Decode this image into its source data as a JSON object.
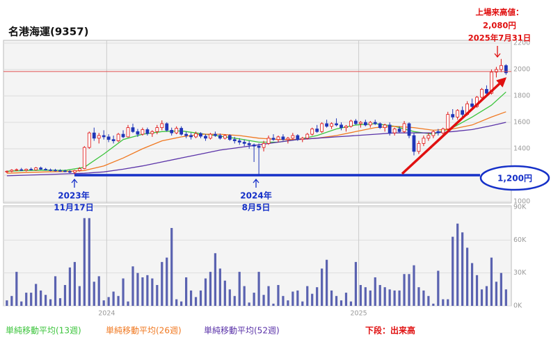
{
  "chart_data": {
    "type": "candlestick",
    "title": "名港海運(9357)",
    "xlim": [
      -0.7,
      104.1
    ],
    "xticks": [
      {
        "value": 20.6,
        "label": "2024"
      },
      {
        "value": 72.6,
        "label": "2025"
      }
    ],
    "ylim": [
      1000,
      2200
    ],
    "yticks": [
      1000,
      1200,
      1400,
      1600,
      1800,
      2000,
      2200
    ],
    "volume_ylim": [
      0,
      90000
    ],
    "volume_ticks": [
      {
        "value": 0,
        "label": "0K"
      },
      {
        "value": 30000,
        "label": "30K"
      },
      {
        "value": 60000,
        "label": "60K"
      },
      {
        "value": 90000,
        "label": "90K"
      }
    ],
    "up_color": "#e01010",
    "down_color": "#2036b8",
    "volume_color": "#5a62b0",
    "candles": [
      [
        1225,
        1235,
        1215,
        1230
      ],
      [
        1230,
        1245,
        1222,
        1238
      ],
      [
        1238,
        1250,
        1230,
        1242
      ],
      [
        1242,
        1255,
        1232,
        1236
      ],
      [
        1236,
        1250,
        1228,
        1245
      ],
      [
        1245,
        1258,
        1236,
        1240
      ],
      [
        1240,
        1262,
        1235,
        1255
      ],
      [
        1255,
        1265,
        1240,
        1245
      ],
      [
        1245,
        1255,
        1236,
        1240
      ],
      [
        1240,
        1250,
        1230,
        1238
      ],
      [
        1238,
        1248,
        1228,
        1235
      ],
      [
        1235,
        1245,
        1225,
        1232
      ],
      [
        1232,
        1242,
        1222,
        1228
      ],
      [
        1228,
        1238,
        1215,
        1222
      ],
      [
        1222,
        1240,
        1200,
        1235
      ],
      [
        1235,
        1260,
        1228,
        1250
      ],
      [
        1250,
        1420,
        1245,
        1410
      ],
      [
        1410,
        1530,
        1400,
        1520
      ],
      [
        1520,
        1560,
        1460,
        1480
      ],
      [
        1480,
        1520,
        1440,
        1500
      ],
      [
        1500,
        1540,
        1470,
        1490
      ],
      [
        1490,
        1510,
        1450,
        1470
      ],
      [
        1470,
        1500,
        1440,
        1460
      ],
      [
        1460,
        1520,
        1450,
        1510
      ],
      [
        1510,
        1540,
        1480,
        1490
      ],
      [
        1490,
        1580,
        1485,
        1560
      ],
      [
        1560,
        1590,
        1520,
        1530
      ],
      [
        1530,
        1550,
        1490,
        1510
      ],
      [
        1510,
        1560,
        1500,
        1545
      ],
      [
        1545,
        1560,
        1500,
        1515
      ],
      [
        1515,
        1540,
        1490,
        1530
      ],
      [
        1530,
        1580,
        1510,
        1560
      ],
      [
        1560,
        1615,
        1540,
        1590
      ],
      [
        1590,
        1600,
        1530,
        1540
      ],
      [
        1540,
        1560,
        1500,
        1520
      ],
      [
        1520,
        1570,
        1510,
        1555
      ],
      [
        1555,
        1570,
        1500,
        1510
      ],
      [
        1510,
        1530,
        1480,
        1500
      ],
      [
        1500,
        1520,
        1470,
        1490
      ],
      [
        1490,
        1530,
        1480,
        1515
      ],
      [
        1515,
        1525,
        1480,
        1495
      ],
      [
        1495,
        1510,
        1460,
        1480
      ],
      [
        1480,
        1520,
        1470,
        1510
      ],
      [
        1510,
        1530,
        1490,
        1500
      ],
      [
        1500,
        1515,
        1470,
        1480
      ],
      [
        1480,
        1510,
        1470,
        1500
      ],
      [
        1500,
        1510,
        1460,
        1470
      ],
      [
        1470,
        1490,
        1440,
        1460
      ],
      [
        1460,
        1480,
        1430,
        1450
      ],
      [
        1450,
        1470,
        1420,
        1440
      ],
      [
        1440,
        1460,
        1400,
        1430
      ],
      [
        1430,
        1440,
        1300,
        1420
      ],
      [
        1420,
        1440,
        1200,
        1410
      ],
      [
        1410,
        1460,
        1380,
        1440
      ],
      [
        1440,
        1500,
        1430,
        1480
      ],
      [
        1480,
        1510,
        1460,
        1470
      ],
      [
        1470,
        1500,
        1450,
        1490
      ],
      [
        1490,
        1510,
        1460,
        1470
      ],
      [
        1470,
        1490,
        1440,
        1480
      ],
      [
        1480,
        1520,
        1470,
        1500
      ],
      [
        1500,
        1510,
        1460,
        1470
      ],
      [
        1470,
        1490,
        1450,
        1480
      ],
      [
        1480,
        1520,
        1470,
        1510
      ],
      [
        1510,
        1560,
        1500,
        1550
      ],
      [
        1550,
        1580,
        1520,
        1530
      ],
      [
        1530,
        1600,
        1520,
        1590
      ],
      [
        1590,
        1620,
        1560,
        1570
      ],
      [
        1570,
        1600,
        1550,
        1590
      ],
      [
        1590,
        1630,
        1570,
        1580
      ],
      [
        1580,
        1600,
        1540,
        1560
      ],
      [
        1560,
        1580,
        1530,
        1570
      ],
      [
        1570,
        1620,
        1560,
        1610
      ],
      [
        1610,
        1625,
        1580,
        1590
      ],
      [
        1590,
        1610,
        1560,
        1600
      ],
      [
        1600,
        1620,
        1570,
        1580
      ],
      [
        1580,
        1610,
        1560,
        1600
      ],
      [
        1600,
        1620,
        1580,
        1590
      ],
      [
        1590,
        1600,
        1550,
        1560
      ],
      [
        1560,
        1590,
        1530,
        1580
      ],
      [
        1580,
        1600,
        1500,
        1520
      ],
      [
        1520,
        1560,
        1500,
        1550
      ],
      [
        1550,
        1570,
        1520,
        1530
      ],
      [
        1530,
        1610,
        1520,
        1590
      ],
      [
        1590,
        1600,
        1480,
        1500
      ],
      [
        1500,
        1520,
        1350,
        1380
      ],
      [
        1380,
        1460,
        1360,
        1440
      ],
      [
        1440,
        1500,
        1420,
        1480
      ],
      [
        1480,
        1520,
        1460,
        1500
      ],
      [
        1500,
        1540,
        1480,
        1530
      ],
      [
        1530,
        1550,
        1500,
        1520
      ],
      [
        1520,
        1560,
        1500,
        1550
      ],
      [
        1550,
        1680,
        1540,
        1660
      ],
      [
        1660,
        1700,
        1620,
        1640
      ],
      [
        1640,
        1700,
        1620,
        1690
      ],
      [
        1690,
        1720,
        1640,
        1660
      ],
      [
        1660,
        1760,
        1650,
        1740
      ],
      [
        1740,
        1780,
        1700,
        1720
      ],
      [
        1720,
        1800,
        1710,
        1790
      ],
      [
        1790,
        1860,
        1780,
        1850
      ],
      [
        1850,
        1880,
        1800,
        1820
      ],
      [
        1820,
        2000,
        1810,
        1980
      ],
      [
        1980,
        2020,
        1940,
        2000
      ],
      [
        2000,
        2080,
        1980,
        2030
      ],
      [
        2030,
        2040,
        1960,
        1975
      ]
    ],
    "volume": [
      5000,
      9000,
      31000,
      4000,
      12000,
      12000,
      20000,
      14000,
      10000,
      6000,
      27000,
      7000,
      19000,
      35000,
      40000,
      18000,
      80000,
      80000,
      22000,
      27000,
      5000,
      8000,
      13000,
      9000,
      25000,
      4000,
      36000,
      30000,
      26000,
      28000,
      25000,
      19000,
      40000,
      44000,
      71000,
      6000,
      4000,
      26000,
      14000,
      8000,
      14000,
      25000,
      31000,
      48000,
      34000,
      23000,
      15000,
      9000,
      31000,
      18000,
      3000,
      12000,
      31000,
      10000,
      18000,
      2000,
      19000,
      9000,
      5000,
      13000,
      14000,
      4000,
      18000,
      11000,
      17000,
      34000,
      42000,
      14000,
      9000,
      5000,
      12000,
      4000,
      40000,
      19000,
      17000,
      14000,
      26000,
      19000,
      17000,
      15000,
      14000,
      14000,
      29000,
      29000,
      37000,
      17000,
      14000,
      9000,
      2000,
      32000,
      6000,
      6000,
      63000,
      75000,
      67000,
      53000,
      39000,
      28000,
      15000,
      18000,
      44000,
      22000,
      30000,
      15000
    ],
    "series": [
      {
        "name": "単純移動平均(13週)",
        "color": "#3cc43c",
        "x": [
          0,
          4,
          8,
          12,
          16,
          20,
          24,
          28,
          32,
          36,
          40,
          44,
          48,
          52,
          56,
          60,
          64,
          68,
          72,
          76,
          80,
          84,
          88,
          92,
          96,
          100,
          103
        ],
        "values": [
          1230,
          1235,
          1238,
          1236,
          1260,
          1360,
          1470,
          1510,
          1530,
          1535,
          1515,
          1495,
          1475,
          1450,
          1450,
          1470,
          1500,
          1550,
          1580,
          1590,
          1570,
          1530,
          1510,
          1560,
          1640,
          1730,
          1830
        ]
      },
      {
        "name": "単純移動平均(26週)",
        "color": "#f07820",
        "x": [
          0,
          4,
          8,
          12,
          16,
          20,
          24,
          28,
          32,
          36,
          40,
          44,
          48,
          52,
          56,
          60,
          64,
          68,
          72,
          76,
          80,
          84,
          88,
          92,
          96,
          100,
          103
        ],
        "values": [
          1215,
          1220,
          1225,
          1228,
          1235,
          1270,
          1330,
          1400,
          1460,
          1490,
          1510,
          1510,
          1500,
          1480,
          1470,
          1470,
          1480,
          1500,
          1530,
          1560,
          1570,
          1560,
          1540,
          1550,
          1580,
          1640,
          1680
        ]
      },
      {
        "name": "単純移動平均(52週)",
        "color": "#5a32a8",
        "x": [
          0,
          4,
          8,
          12,
          16,
          20,
          24,
          28,
          32,
          36,
          40,
          44,
          48,
          52,
          56,
          60,
          64,
          68,
          72,
          76,
          80,
          84,
          88,
          92,
          96,
          100,
          103
        ],
        "values": [
          1195,
          1200,
          1205,
          1210,
          1215,
          1225,
          1245,
          1270,
          1300,
          1330,
          1360,
          1390,
          1410,
          1430,
          1450,
          1470,
          1480,
          1490,
          1500,
          1510,
          1520,
          1520,
          1520,
          1530,
          1545,
          1575,
          1600
        ]
      }
    ],
    "volume_legend": "下段：出来高",
    "high_line": 1985,
    "support_line": 1200,
    "annotations": {
      "high": [
        "上場来高値：",
        "2,080円",
        "2025年7月31日"
      ],
      "low1": [
        "2023年",
        "11月17日"
      ],
      "low2": [
        "2024年",
        "8月5日"
      ],
      "support": "1,200円"
    }
  }
}
